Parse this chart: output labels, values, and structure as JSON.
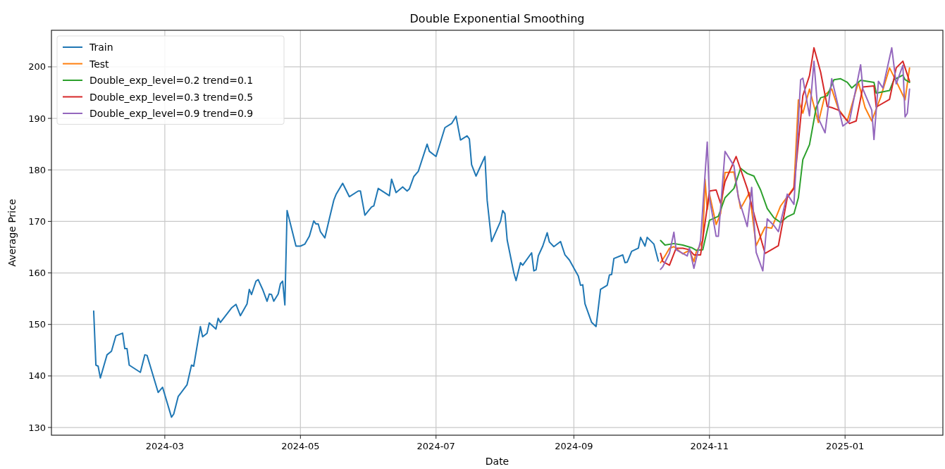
{
  "chart_data": {
    "type": "line",
    "title": "Double Exponential Smoothing",
    "xlabel": "Date",
    "ylabel": "Average Price",
    "xlim": [
      "2024-01-10",
      "2025-02-14"
    ],
    "ylim": [
      128.5,
      207.1
    ],
    "xticks": [
      {
        "value": "2024-03-01",
        "label": "2024-03"
      },
      {
        "value": "2024-05-01",
        "label": "2024-05"
      },
      {
        "value": "2024-07-01",
        "label": "2024-07"
      },
      {
        "value": "2024-09-01",
        "label": "2024-09"
      },
      {
        "value": "2024-11-01",
        "label": "2024-11"
      },
      {
        "value": "2025-01-01",
        "label": "2025-01"
      }
    ],
    "yticks": [
      130,
      140,
      150,
      160,
      170,
      180,
      190,
      200
    ],
    "grid": true,
    "legend": "top left",
    "line_style": "solid",
    "series": [
      {
        "name": "Train",
        "color": "#1f77b4",
        "x": [
          "2024-01-29",
          "2024-01-30",
          "2024-01-31",
          "2024-02-01",
          "2024-02-04",
          "2024-02-06",
          "2024-02-08",
          "2024-02-11",
          "2024-02-12",
          "2024-02-13",
          "2024-02-14",
          "2024-02-19",
          "2024-02-21",
          "2024-02-22",
          "2024-02-27",
          "2024-02-29",
          "2024-03-04",
          "2024-03-05",
          "2024-03-07",
          "2024-03-11",
          "2024-03-13",
          "2024-03-14",
          "2024-03-17",
          "2024-03-18",
          "2024-03-20",
          "2024-03-21",
          "2024-03-24",
          "2024-03-25",
          "2024-03-26",
          "2024-03-31",
          "2024-04-02",
          "2024-04-04",
          "2024-04-07",
          "2024-04-08",
          "2024-04-09",
          "2024-04-11",
          "2024-04-12",
          "2024-04-14",
          "2024-04-16",
          "2024-04-17",
          "2024-04-18",
          "2024-04-19",
          "2024-04-21",
          "2024-04-22",
          "2024-04-23",
          "2024-04-24",
          "2024-04-25",
          "2024-04-29",
          "2024-05-01",
          "2024-05-03",
          "2024-05-05",
          "2024-05-07",
          "2024-05-08",
          "2024-05-09",
          "2024-05-10",
          "2024-05-12",
          "2024-05-14",
          "2024-05-16",
          "2024-05-17",
          "2024-05-20",
          "2024-05-23",
          "2024-05-27",
          "2024-05-28",
          "2024-05-30",
          "2024-06-02",
          "2024-06-03",
          "2024-06-05",
          "2024-06-10",
          "2024-06-11",
          "2024-06-13",
          "2024-06-16",
          "2024-06-18",
          "2024-06-19",
          "2024-06-21",
          "2024-06-23",
          "2024-06-27",
          "2024-06-28",
          "2024-07-01",
          "2024-07-05",
          "2024-07-08",
          "2024-07-10",
          "2024-07-12",
          "2024-07-15",
          "2024-07-16",
          "2024-07-17",
          "2024-07-19",
          "2024-07-23",
          "2024-07-24",
          "2024-07-26",
          "2024-07-30",
          "2024-07-31",
          "2024-08-01",
          "2024-08-02",
          "2024-08-05",
          "2024-08-06",
          "2024-08-08",
          "2024-08-09",
          "2024-08-13",
          "2024-08-14",
          "2024-08-15",
          "2024-08-16",
          "2024-08-18",
          "2024-08-20",
          "2024-08-21",
          "2024-08-23",
          "2024-08-26",
          "2024-08-28",
          "2024-08-30",
          "2024-09-03",
          "2024-09-04",
          "2024-09-05",
          "2024-09-06",
          "2024-09-09",
          "2024-09-11",
          "2024-09-13",
          "2024-09-16",
          "2024-09-17",
          "2024-09-18",
          "2024-09-19",
          "2024-09-23",
          "2024-09-24",
          "2024-09-25",
          "2024-09-27",
          "2024-09-30",
          "2024-10-01",
          "2024-10-03",
          "2024-10-04",
          "2024-10-07",
          "2024-10-09"
        ],
        "values": [
          152.6,
          142.1,
          141.9,
          139.6,
          144.1,
          144.8,
          147.8,
          148.3,
          145.3,
          145.3,
          142.1,
          140.7,
          144.1,
          144.0,
          136.8,
          137.8,
          132.0,
          132.6,
          136.0,
          138.3,
          142.1,
          141.9,
          149.6,
          147.6,
          148.3,
          150.3,
          149.1,
          151.2,
          150.4,
          153.2,
          153.9,
          151.7,
          154.0,
          156.8,
          155.8,
          158.4,
          158.7,
          156.8,
          154.5,
          155.9,
          155.8,
          154.5,
          155.9,
          157.9,
          158.4,
          153.8,
          172.1,
          165.2,
          165.2,
          165.6,
          167.1,
          170.1,
          169.5,
          169.5,
          168.0,
          166.8,
          170.5,
          174.1,
          175.2,
          177.4,
          174.8,
          175.9,
          175.9,
          171.2,
          172.8,
          173.0,
          176.4,
          175.0,
          178.2,
          175.6,
          176.7,
          175.9,
          176.3,
          178.7,
          179.7,
          185.0,
          183.6,
          182.6,
          188.2,
          189.0,
          190.4,
          185.8,
          186.6,
          186.0,
          181.0,
          178.8,
          182.6,
          174.1,
          166.1,
          170.0,
          172.1,
          171.5,
          166.4,
          160.0,
          158.5,
          162.0,
          161.5,
          163.9,
          160.4,
          160.6,
          163.3,
          165.2,
          167.8,
          166.0,
          165.1,
          166.1,
          163.5,
          162.5,
          159.4,
          157.6,
          157.7,
          154.0,
          150.4,
          149.6,
          156.8,
          157.6,
          159.6,
          159.7,
          162.8,
          163.5,
          162.0,
          162.1,
          164.2,
          164.8,
          166.9,
          165.2,
          166.9,
          165.6,
          162.3
        ]
      },
      {
        "name": "Test",
        "color": "#ff7f0e",
        "x": [
          "2024-10-10",
          "2024-10-12",
          "2024-10-14",
          "2024-10-16",
          "2024-10-20",
          "2024-10-23",
          "2024-10-25",
          "2024-10-26",
          "2024-10-29",
          "2024-10-30",
          "2024-10-31",
          "2024-11-01",
          "2024-11-04",
          "2024-11-06",
          "2024-11-08",
          "2024-11-12",
          "2024-11-15",
          "2024-11-19",
          "2024-11-22",
          "2024-11-26",
          "2024-11-29",
          "2024-12-03",
          "2024-12-09",
          "2024-12-11",
          "2024-12-13",
          "2024-12-16",
          "2024-12-20",
          "2024-12-23",
          "2024-12-26",
          "2024-12-29",
          "2025-01-02",
          "2025-01-07",
          "2025-01-10",
          "2025-01-13",
          "2025-01-17",
          "2025-01-21",
          "2025-01-24",
          "2025-01-28",
          "2025-01-30"
        ],
        "values": [
          162.0,
          163.3,
          164.8,
          165.1,
          163.7,
          164.4,
          162.2,
          164.0,
          166.3,
          178.2,
          172.3,
          175.3,
          169.4,
          171.5,
          179.5,
          179.6,
          172.5,
          175.6,
          165.3,
          168.9,
          168.7,
          173.0,
          176.6,
          193.6,
          191.0,
          195.7,
          189.2,
          194.6,
          195.7,
          191.8,
          189.5,
          197.0,
          192.1,
          189.5,
          194.1,
          199.8,
          197.2,
          193.6,
          199.8
        ]
      },
      {
        "name": "Double_exp_level=0.2 trend=0.1",
        "color": "#2ca02c",
        "x": [
          "2024-10-10",
          "2024-10-12",
          "2024-10-16",
          "2024-10-20",
          "2024-10-24",
          "2024-10-26",
          "2024-10-29",
          "2024-11-01",
          "2024-11-05",
          "2024-11-08",
          "2024-11-12",
          "2024-11-15",
          "2024-11-18",
          "2024-11-21",
          "2024-11-24",
          "2024-11-27",
          "2024-11-30",
          "2024-12-03",
          "2024-12-06",
          "2024-12-09",
          "2024-12-11",
          "2024-12-13",
          "2024-12-16",
          "2024-12-19",
          "2024-12-21",
          "2024-12-24",
          "2024-12-27",
          "2024-12-30",
          "2025-01-02",
          "2025-01-04",
          "2025-01-08",
          "2025-01-14",
          "2025-01-15",
          "2025-01-21",
          "2025-01-23",
          "2025-01-27",
          "2025-01-28",
          "2025-01-30"
        ],
        "values": [
          166.3,
          165.4,
          165.7,
          165.4,
          164.9,
          164.4,
          164.5,
          170.2,
          171.0,
          174.6,
          176.4,
          180.3,
          179.3,
          178.8,
          176.1,
          172.5,
          170.7,
          169.8,
          170.9,
          171.5,
          174.6,
          182.0,
          184.9,
          192.1,
          194.0,
          194.4,
          197.5,
          197.7,
          197.0,
          195.9,
          197.4,
          197.0,
          194.9,
          195.4,
          197.5,
          198.4,
          197.5,
          197.0
        ]
      },
      {
        "name": "Double_exp_level=0.3 trend=0.5",
        "color": "#d62728",
        "x": [
          "2024-10-10",
          "2024-10-11",
          "2024-10-14",
          "2024-10-17",
          "2024-10-20",
          "2024-10-23",
          "2024-10-25",
          "2024-10-28",
          "2024-11-01",
          "2024-11-04",
          "2024-11-06",
          "2024-11-08",
          "2024-11-13",
          "2024-11-18",
          "2024-11-22",
          "2024-11-26",
          "2024-12-02",
          "2024-12-06",
          "2024-12-09",
          "2024-12-13",
          "2024-12-16",
          "2024-12-18",
          "2024-12-21",
          "2024-12-24",
          "2024-12-26",
          "2024-12-29",
          "2025-01-03",
          "2025-01-06",
          "2025-01-09",
          "2025-01-14",
          "2025-01-15",
          "2025-01-21",
          "2025-01-24",
          "2025-01-27",
          "2025-01-30"
        ],
        "values": [
          163.8,
          162.2,
          161.5,
          164.8,
          164.8,
          164.5,
          163.5,
          163.5,
          175.9,
          176.1,
          173.5,
          177.7,
          182.6,
          176.4,
          169.9,
          163.8,
          165.3,
          174.6,
          176.4,
          194.4,
          198.3,
          203.7,
          199.0,
          192.3,
          192.1,
          191.6,
          189.0,
          189.5,
          196.1,
          196.3,
          192.2,
          193.7,
          199.8,
          201.1,
          197.2
        ]
      },
      {
        "name": "Double_exp_level=0.9 trend=0.9",
        "color": "#9467bd",
        "x": [
          "2024-10-10",
          "2024-10-11",
          "2024-10-14",
          "2024-10-16",
          "2024-10-17",
          "2024-10-22",
          "2024-10-23",
          "2024-10-25",
          "2024-10-28",
          "2024-10-31",
          "2024-11-01",
          "2024-11-04",
          "2024-11-05",
          "2024-11-08",
          "2024-11-12",
          "2024-11-14",
          "2024-11-18",
          "2024-11-20",
          "2024-11-22",
          "2024-11-25",
          "2024-11-27",
          "2024-11-30",
          "2024-12-02",
          "2024-12-06",
          "2024-12-09",
          "2024-12-12",
          "2024-12-13",
          "2024-12-16",
          "2024-12-18",
          "2024-12-20",
          "2024-12-23",
          "2024-12-26",
          "2024-12-31",
          "2025-01-03",
          "2025-01-08",
          "2025-01-09",
          "2025-01-13",
          "2025-01-14",
          "2025-01-16",
          "2025-01-18",
          "2025-01-22",
          "2025-01-24",
          "2025-01-27",
          "2025-01-28",
          "2025-01-29",
          "2025-01-30"
        ],
        "values": [
          160.7,
          161.2,
          163.8,
          167.9,
          164.5,
          163.3,
          164.8,
          160.9,
          166.3,
          185.4,
          174.6,
          167.1,
          167.1,
          183.6,
          180.8,
          174.6,
          169.0,
          176.6,
          164.0,
          160.4,
          170.5,
          169.2,
          168.0,
          175.3,
          173.3,
          197.5,
          197.8,
          190.5,
          201.1,
          190.0,
          187.2,
          197.7,
          188.5,
          189.5,
          200.4,
          195.7,
          191.6,
          185.9,
          197.2,
          195.9,
          203.7,
          196.7,
          200.3,
          190.3,
          191.0,
          195.7
        ]
      }
    ]
  }
}
